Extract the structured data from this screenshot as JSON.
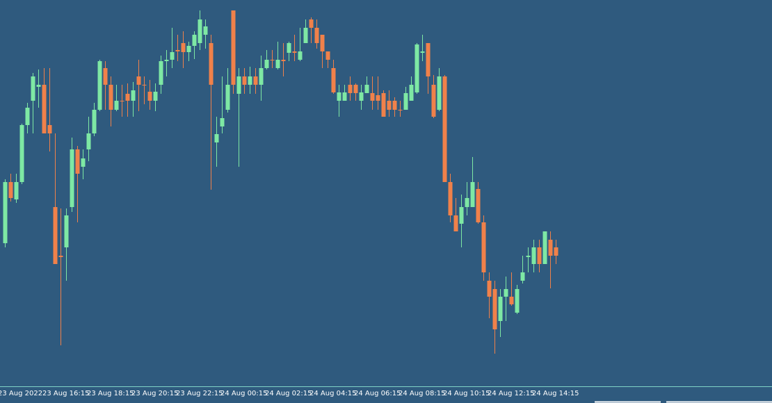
{
  "chart_data": {
    "type": "candlestick",
    "categories": [
      "23 Aug 2022",
      null,
      null,
      null,
      null,
      null,
      null,
      null,
      "23 Aug 16:15",
      null,
      null,
      null,
      null,
      null,
      null,
      null,
      "23 Aug 18:15",
      null,
      null,
      null,
      null,
      null,
      null,
      null,
      "23 Aug 20:15",
      null,
      null,
      null,
      null,
      null,
      null,
      null,
      "23 Aug 22:15",
      null,
      null,
      null,
      null,
      null,
      null,
      null,
      "24 Aug 00:15",
      null,
      null,
      null,
      null,
      null,
      null,
      null,
      "24 Aug 02:15",
      null,
      null,
      null,
      null,
      null,
      null,
      null,
      "24 Aug 04:15",
      null,
      null,
      null,
      null,
      null,
      null,
      null,
      "24 Aug 06:15",
      null,
      null,
      null,
      null,
      null,
      null,
      null,
      "24 Aug 08:15",
      null,
      null,
      null,
      null,
      null,
      null,
      null,
      "24 Aug 10:15",
      null,
      null,
      null,
      null,
      null,
      null,
      null,
      "24 Aug 12:15",
      null,
      null,
      null,
      null,
      null,
      null,
      null,
      "24 Aug 14:15",
      null,
      null,
      null,
      null
    ],
    "open": [
      null,
      230,
      318,
      293,
      318,
      400,
      435,
      455,
      458,
      400,
      282,
      212,
      224,
      282,
      365,
      340,
      365,
      388,
      422,
      482,
      458,
      422,
      435,
      445,
      435,
      470,
      458,
      448,
      435,
      458,
      492,
      494,
      508,
      518,
      505,
      514,
      518,
      530,
      518,
      375,
      398,
      422,
      565,
      445,
      470,
      458,
      470,
      458,
      482,
      494,
      482,
      494,
      504,
      506,
      494,
      518,
      552,
      540,
      530,
      506,
      482,
      435,
      435,
      458,
      458,
      435,
      446,
      446,
      443,
      446,
      435,
      435,
      422,
      422,
      435,
      447,
      504,
      518,
      458,
      422,
      470,
      318,
      270,
      258,
      282,
      282,
      308,
      260,
      176,
      164,
      118,
      153,
      153,
      130,
      176,
      210,
      200,
      224,
      200,
      235,
      224
    ],
    "high": [
      null,
      322,
      330,
      330,
      402,
      432,
      475,
      480,
      482,
      482,
      388,
      280,
      280,
      382,
      370,
      365,
      412,
      432,
      494,
      492,
      470,
      458,
      458,
      460,
      462,
      494,
      470,
      465,
      460,
      500,
      508,
      540,
      530,
      535,
      520,
      535,
      565,
      552,
      530,
      412,
      470,
      482,
      565,
      482,
      482,
      484,
      482,
      500,
      508,
      508,
      520,
      518,
      520,
      530,
      540,
      552,
      555,
      552,
      530,
      506,
      494,
      458,
      458,
      470,
      460,
      458,
      470,
      470,
      470,
      450,
      450,
      440,
      435,
      455,
      470,
      518,
      530,
      518,
      472,
      482,
      472,
      330,
      295,
      300,
      318,
      354,
      318,
      270,
      188,
      176,
      164,
      182,
      188,
      170,
      212,
      224,
      235,
      235,
      247,
      247,
      235
    ],
    "low": [
      null,
      224,
      290,
      288,
      315,
      388,
      388,
      425,
      388,
      362,
      200,
      83,
      176,
      275,
      260,
      322,
      348,
      384,
      420,
      422,
      398,
      420,
      412,
      412,
      412,
      420,
      430,
      422,
      420,
      445,
      470,
      482,
      492,
      482,
      492,
      495,
      508,
      510,
      307,
      340,
      388,
      418,
      445,
      340,
      445,
      445,
      445,
      435,
      480,
      482,
      480,
      470,
      492,
      492,
      492,
      518,
      518,
      510,
      482,
      482,
      445,
      412,
      435,
      435,
      435,
      422,
      446,
      422,
      422,
      412,
      412,
      412,
      412,
      422,
      435,
      445,
      492,
      445,
      410,
      420,
      318,
      260,
      247,
      224,
      270,
      282,
      258,
      176,
      122,
      71,
      95,
      118,
      140,
      128,
      172,
      188,
      188,
      188,
      200,
      165,
      200
    ],
    "close": [
      null,
      318,
      295,
      318,
      400,
      425,
      470,
      458,
      388,
      388,
      200,
      210,
      270,
      365,
      330,
      352,
      388,
      422,
      492,
      458,
      422,
      435,
      434,
      435,
      450,
      458,
      457,
      435,
      448,
      492,
      494,
      505,
      506,
      505,
      514,
      530,
      552,
      542,
      458,
      387,
      410,
      458,
      458,
      470,
      458,
      470,
      458,
      482,
      494,
      493,
      494,
      492,
      518,
      504,
      506,
      540,
      540,
      518,
      506,
      494,
      447,
      447,
      447,
      446,
      446,
      447,
      458,
      435,
      435,
      412,
      422,
      422,
      421,
      446,
      458,
      516,
      506,
      470,
      412,
      470,
      318,
      270,
      247,
      282,
      295,
      318,
      260,
      188,
      153,
      106,
      153,
      164,
      142,
      164,
      188,
      212,
      224,
      200,
      247,
      212,
      212
    ],
    "up_color": "#7ee8a4",
    "down_color": "#f0814a",
    "ylim": [
      0,
      580
    ]
  }
}
